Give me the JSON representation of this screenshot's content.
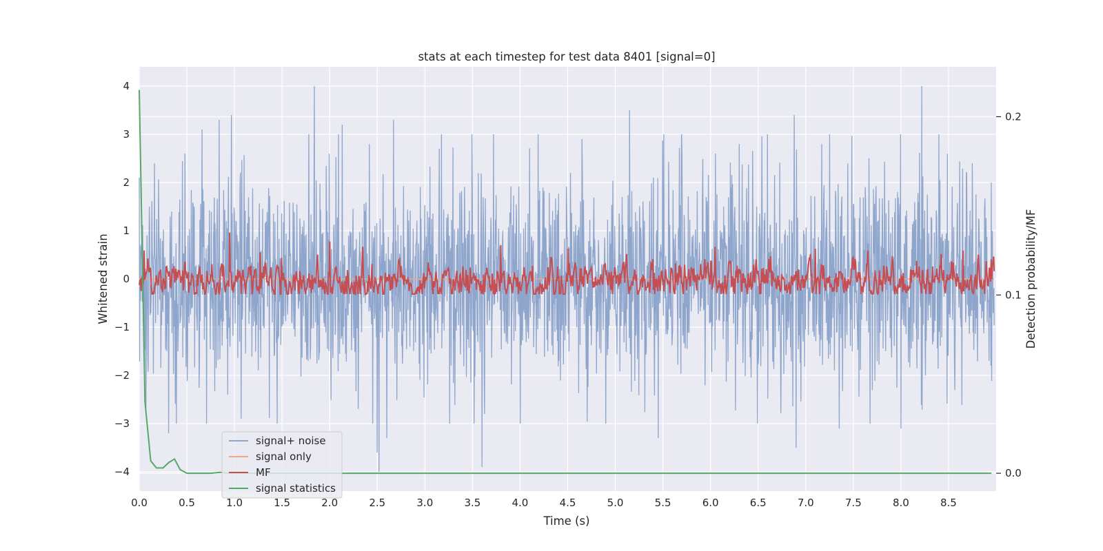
{
  "chart_data": {
    "type": "line",
    "title": "stats at each timestep for test data 8401 [signal=0]",
    "xlabel": "Time (s)",
    "ylabel": "Whitened strain",
    "y2label": "Detection probability/MF",
    "xlim": [
      0,
      9.0
    ],
    "ylim": [
      -4.4,
      4.4
    ],
    "y2lim": [
      -0.01,
      0.228
    ],
    "xticks": [
      0.0,
      0.5,
      1.0,
      1.5,
      2.0,
      2.5,
      3.0,
      3.5,
      4.0,
      4.5,
      5.0,
      5.5,
      6.0,
      6.5,
      7.0,
      7.5,
      8.0,
      8.5
    ],
    "xtick_labels": [
      "0.0",
      "0.5",
      "1.0",
      "1.5",
      "2.0",
      "2.5",
      "3.0",
      "3.5",
      "4.0",
      "4.5",
      "5.0",
      "5.5",
      "6.0",
      "6.5",
      "7.0",
      "7.5",
      "8.0",
      "8.5"
    ],
    "yticks": [
      4,
      3,
      2,
      1,
      0,
      -1,
      -2,
      -3,
      -4
    ],
    "ytick_labels": [
      "4",
      "3",
      "2",
      "1",
      "0",
      "−1",
      "−2",
      "−3",
      "−4"
    ],
    "y2ticks": [
      0.2,
      0.1,
      0.0
    ],
    "y2tick_labels": [
      "0.2",
      "0.1",
      "0.0"
    ],
    "grid": true,
    "legend_position": "lower-left",
    "series": [
      {
        "name": "signal+ noise",
        "axis": "left",
        "color": "#8ea5cc",
        "description": "whitened strain noise, approx range -4.0 to 4.0",
        "peaks": [
          [
            0.0,
            2.1
          ],
          [
            0.07,
            -2.7
          ],
          [
            0.16,
            2.4
          ],
          [
            0.31,
            -3.2
          ],
          [
            0.48,
            2.6
          ],
          [
            0.66,
            3.1
          ],
          [
            0.84,
            3.3
          ],
          [
            0.97,
            3.4
          ],
          [
            1.07,
            -2.9
          ],
          [
            1.45,
            -3.0
          ],
          [
            1.84,
            4.0
          ],
          [
            2.13,
            3.2
          ],
          [
            2.5,
            -3.6
          ],
          [
            2.52,
            -4.0
          ],
          [
            2.6,
            -3.3
          ],
          [
            2.67,
            3.3
          ],
          [
            3.15,
            2.7
          ],
          [
            3.6,
            -3.9
          ],
          [
            3.72,
            3.0
          ],
          [
            4.65,
            2.9
          ],
          [
            4.9,
            -3.0
          ],
          [
            5.15,
            3.5
          ],
          [
            5.45,
            -3.3
          ],
          [
            6.05,
            2.6
          ],
          [
            6.3,
            2.8
          ],
          [
            6.88,
            3.4
          ],
          [
            6.9,
            -3.5
          ],
          [
            7.25,
            3.0
          ],
          [
            7.35,
            -3.1
          ],
          [
            8.0,
            -3.1
          ],
          [
            8.22,
            4.0
          ],
          [
            8.4,
            3.0
          ],
          [
            8.75,
            2.4
          ],
          [
            8.95,
            2.0
          ]
        ]
      },
      {
        "name": "signal only",
        "axis": "left",
        "color": "#e9a98c",
        "constant_value": 0.0
      },
      {
        "name": "MF",
        "axis": "right",
        "color": "#c44e52",
        "description": "matched filter output, approx range 0.1 to 0.135",
        "peaks": [
          [
            0.05,
            0.125
          ],
          [
            0.95,
            0.135
          ],
          [
            1.27,
            0.124
          ],
          [
            2.0,
            0.13
          ],
          [
            2.35,
            0.127
          ],
          [
            3.8,
            0.128
          ],
          [
            4.5,
            0.126
          ],
          [
            6.05,
            0.127
          ],
          [
            7.1,
            0.126
          ],
          [
            7.65,
            0.125
          ],
          [
            8.65,
            0.125
          ],
          [
            8.95,
            0.12
          ]
        ]
      },
      {
        "name": "signal statistics",
        "axis": "right",
        "color": "#55a868",
        "x": [
          0.0,
          0.06,
          0.12,
          0.18,
          0.25,
          0.31,
          0.37,
          0.43,
          0.5,
          0.56,
          0.75,
          0.85,
          0.95,
          1.1,
          2.0,
          3.0,
          4.0,
          5.0,
          6.0,
          7.0,
          8.0,
          8.95
        ],
        "values": [
          0.215,
          0.04,
          0.007,
          0.003,
          0.003,
          0.006,
          0.008,
          0.002,
          0.0,
          0.0,
          0.0,
          0.0005,
          0.0,
          0.0,
          0.0,
          0.0,
          0.0,
          0.0,
          0.0,
          0.0,
          0.0,
          0.0
        ]
      }
    ]
  }
}
